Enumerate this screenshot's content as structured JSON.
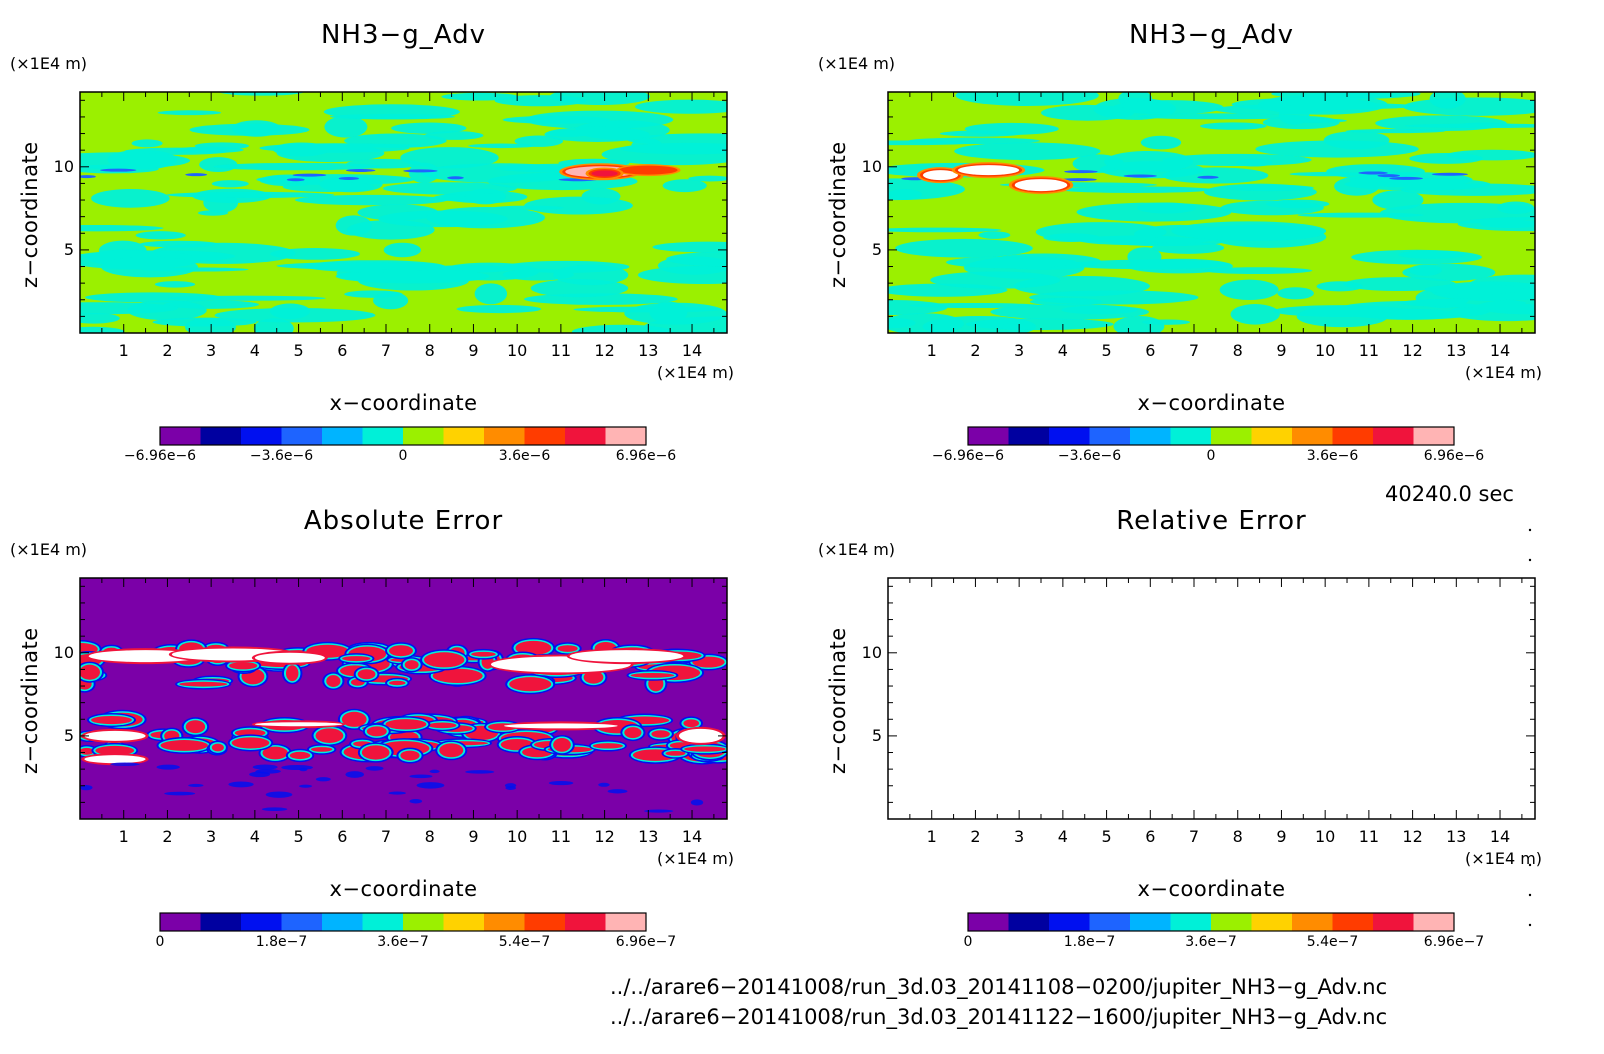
{
  "panels": [
    {
      "title": "NH3−g_Adv",
      "ylabel": "z−coordinate",
      "xlabel": "x−coordinate",
      "yunit": "(×1E4 m)",
      "xunit": "(×1E4 m)",
      "field": "adv1"
    },
    {
      "title": "NH3−g_Adv",
      "ylabel": "z−coordinate",
      "xlabel": "x−coordinate",
      "yunit": "(×1E4 m)",
      "xunit": "(×1E4 m)",
      "field": "adv2"
    },
    {
      "title": "Absolute Error",
      "ylabel": "z−coordinate",
      "xlabel": "x−coordinate",
      "yunit": "(×1E4 m)",
      "xunit": "(×1E4 m)",
      "field": "abs"
    },
    {
      "title": "Relative Error",
      "ylabel": "z−coordinate",
      "xlabel": "x−coordinate",
      "yunit": "(×1E4 m)",
      "xunit": "(×1E4 m)",
      "field": "none"
    }
  ],
  "time_label": "40240.0 sec",
  "paths": [
    "../../arare6−20141008/run_3d.03_20141108−0200/jupiter_NH3−g_Adv.nc",
    "../../arare6−20141008/run_3d.03_20141122−1600/jupiter_NH3−g_Adv.nc"
  ],
  "chart_data": [
    {
      "type": "heatmap",
      "title": "NH3−g_Adv",
      "xlabel": "x−coordinate",
      "ylabel": "z−coordinate",
      "xlim": [
        0,
        14.8
      ],
      "ylim": [
        0,
        14.5
      ],
      "xticks": [
        "1",
        "2",
        "3",
        "4",
        "5",
        "6",
        "7",
        "8",
        "9",
        "10",
        "11",
        "12",
        "13",
        "14"
      ],
      "yticks": [
        "5",
        "10"
      ],
      "colorbar": {
        "ticks": [
          "−6.96e−6",
          "−3.6e−6",
          "0",
          "3.6e−6",
          "6.96e−6"
        ],
        "range": [
          -6.96e-06,
          6.96e-06
        ]
      }
    },
    {
      "type": "heatmap",
      "title": "NH3−g_Adv",
      "xlabel": "x−coordinate",
      "ylabel": "z−coordinate",
      "xlim": [
        0,
        14.8
      ],
      "ylim": [
        0,
        14.5
      ],
      "xticks": [
        "1",
        "2",
        "3",
        "4",
        "5",
        "6",
        "7",
        "8",
        "9",
        "10",
        "11",
        "12",
        "13",
        "14"
      ],
      "yticks": [
        "5",
        "10"
      ],
      "colorbar": {
        "ticks": [
          "−6.96e−6",
          "−3.6e−6",
          "0",
          "3.6e−6",
          "6.96e−6"
        ],
        "range": [
          -6.96e-06,
          6.96e-06
        ]
      }
    },
    {
      "type": "heatmap",
      "title": "Absolute Error",
      "xlabel": "x−coordinate",
      "ylabel": "z−coordinate",
      "xlim": [
        0,
        14.8
      ],
      "ylim": [
        0,
        14.5
      ],
      "xticks": [
        "1",
        "2",
        "3",
        "4",
        "5",
        "6",
        "7",
        "8",
        "9",
        "10",
        "11",
        "12",
        "13",
        "14"
      ],
      "yticks": [
        "5",
        "10"
      ],
      "colorbar": {
        "ticks": [
          "0",
          "1.8e−7",
          "3.6e−7",
          "5.4e−7",
          "6.96e−7"
        ],
        "range": [
          0,
          6.96e-07
        ]
      }
    },
    {
      "type": "heatmap",
      "title": "Relative Error",
      "xlabel": "x−coordinate",
      "ylabel": "z−coordinate",
      "xlim": [
        0,
        14.8
      ],
      "ylim": [
        0,
        14.5
      ],
      "xticks": [
        "1",
        "2",
        "3",
        "4",
        "5",
        "6",
        "7",
        "8",
        "9",
        "10",
        "11",
        "12",
        "13",
        "14"
      ],
      "yticks": [
        "5",
        "10"
      ],
      "colorbar": {
        "ticks": [
          "0",
          "1.8e−7",
          "3.6e−7",
          "5.4e−7",
          "6.96e−7"
        ],
        "range": [
          0,
          6.96e-07
        ]
      }
    }
  ],
  "colors": {
    "palette": [
      "#7b00a8",
      "#0000a0",
      "#0010f0",
      "#1e64ff",
      "#00b4ff",
      "#00f0d8",
      "#9bf000",
      "#ffd200",
      "#ff8c00",
      "#ff3c00",
      "#f0143c",
      "#ffb4b4"
    ],
    "white": "#ffffff"
  }
}
